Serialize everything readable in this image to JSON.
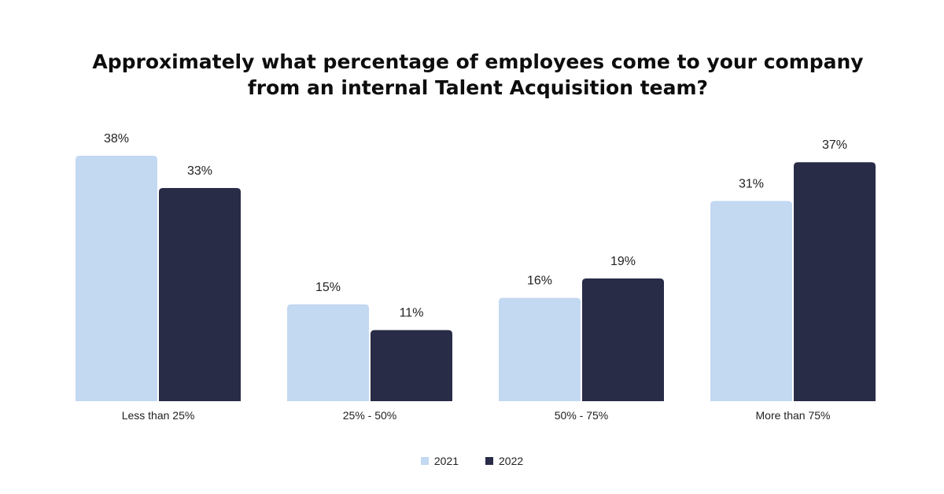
{
  "chart_data": {
    "type": "bar",
    "title": "Approximately what percentage of employees come to your company from an internal Talent Acquisition team?",
    "categories": [
      "Less than 25%",
      "25% - 50%",
      "50% - 75%",
      "More than 75%"
    ],
    "series": [
      {
        "name": "2021",
        "color": "#c3d8f1",
        "values": [
          38,
          15,
          16,
          31
        ],
        "labels": [
          "38%",
          "15%",
          "16%",
          "31%"
        ]
      },
      {
        "name": "2022",
        "color": "#282c47",
        "values": [
          33,
          11,
          19,
          37
        ],
        "labels": [
          "33%",
          "11%",
          "19%",
          "37%"
        ]
      }
    ],
    "xlabel": "",
    "ylabel": "",
    "ylim": [
      0,
      38
    ],
    "grid": false,
    "legend": "bottom-center"
  }
}
